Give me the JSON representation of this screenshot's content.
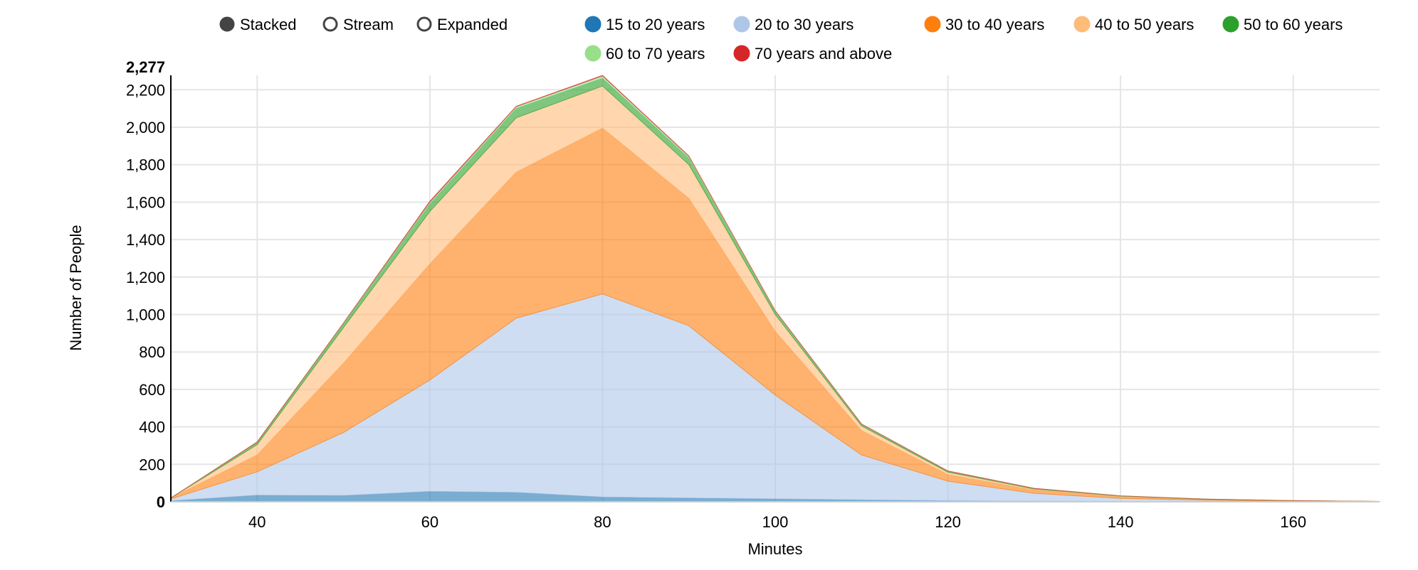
{
  "chart_data": {
    "type": "area",
    "mode": "stacked",
    "controls": [
      {
        "label": "Stacked",
        "selected": true
      },
      {
        "label": "Stream",
        "selected": false
      },
      {
        "label": "Expanded",
        "selected": false
      }
    ],
    "xlabel": "Minutes",
    "ylabel": "Number of People",
    "x": [
      30,
      40,
      50,
      60,
      70,
      80,
      90,
      100,
      110,
      120,
      130,
      140,
      150,
      160,
      170
    ],
    "xlim": [
      30,
      170
    ],
    "ylim": [
      0,
      2277
    ],
    "xticks": [
      40,
      60,
      80,
      100,
      120,
      140,
      160
    ],
    "yticks": [
      0,
      200,
      400,
      600,
      800,
      1000,
      1200,
      1400,
      1600,
      1800,
      2000,
      2200
    ],
    "ymax_label": "2,277",
    "grid": true,
    "legend_position": "top",
    "series": [
      {
        "name": "15 to 20 years",
        "color": "#1f77b4",
        "values": [
          5,
          35,
          33,
          55,
          50,
          25,
          20,
          15,
          10,
          5,
          3,
          2,
          1,
          0,
          0
        ]
      },
      {
        "name": "20 to 30 years",
        "color": "#aec7e8",
        "values": [
          10,
          125,
          337,
          595,
          930,
          1085,
          920,
          555,
          240,
          105,
          42,
          16,
          7,
          3,
          1
        ]
      },
      {
        "name": "30 to 40 years",
        "color": "#ff7f0e",
        "values": [
          5,
          90,
          370,
          620,
          780,
          885,
          680,
          340,
          130,
          35,
          17,
          9,
          4,
          2,
          1
        ]
      },
      {
        "name": "40 to 50 years",
        "color": "#ffbb78",
        "values": [
          0,
          55,
          190,
          280,
          290,
          225,
          180,
          90,
          25,
          13,
          6,
          3,
          1,
          1,
          0
        ]
      },
      {
        "name": "50 to 60 years",
        "color": "#2ca02c",
        "values": [
          0,
          10,
          20,
          40,
          50,
          42,
          35,
          15,
          7,
          4,
          2,
          1,
          1,
          0,
          0
        ]
      },
      {
        "name": "60 to 70 years",
        "color": "#98df8a",
        "values": [
          0,
          3,
          4,
          10,
          10,
          12,
          10,
          5,
          3,
          2,
          1,
          1,
          0,
          0,
          0
        ]
      },
      {
        "name": "70 years and above",
        "color": "#d62728",
        "values": [
          0,
          2,
          1,
          5,
          2,
          3,
          2,
          1,
          1,
          1,
          1,
          0,
          0,
          0,
          0
        ]
      }
    ]
  }
}
